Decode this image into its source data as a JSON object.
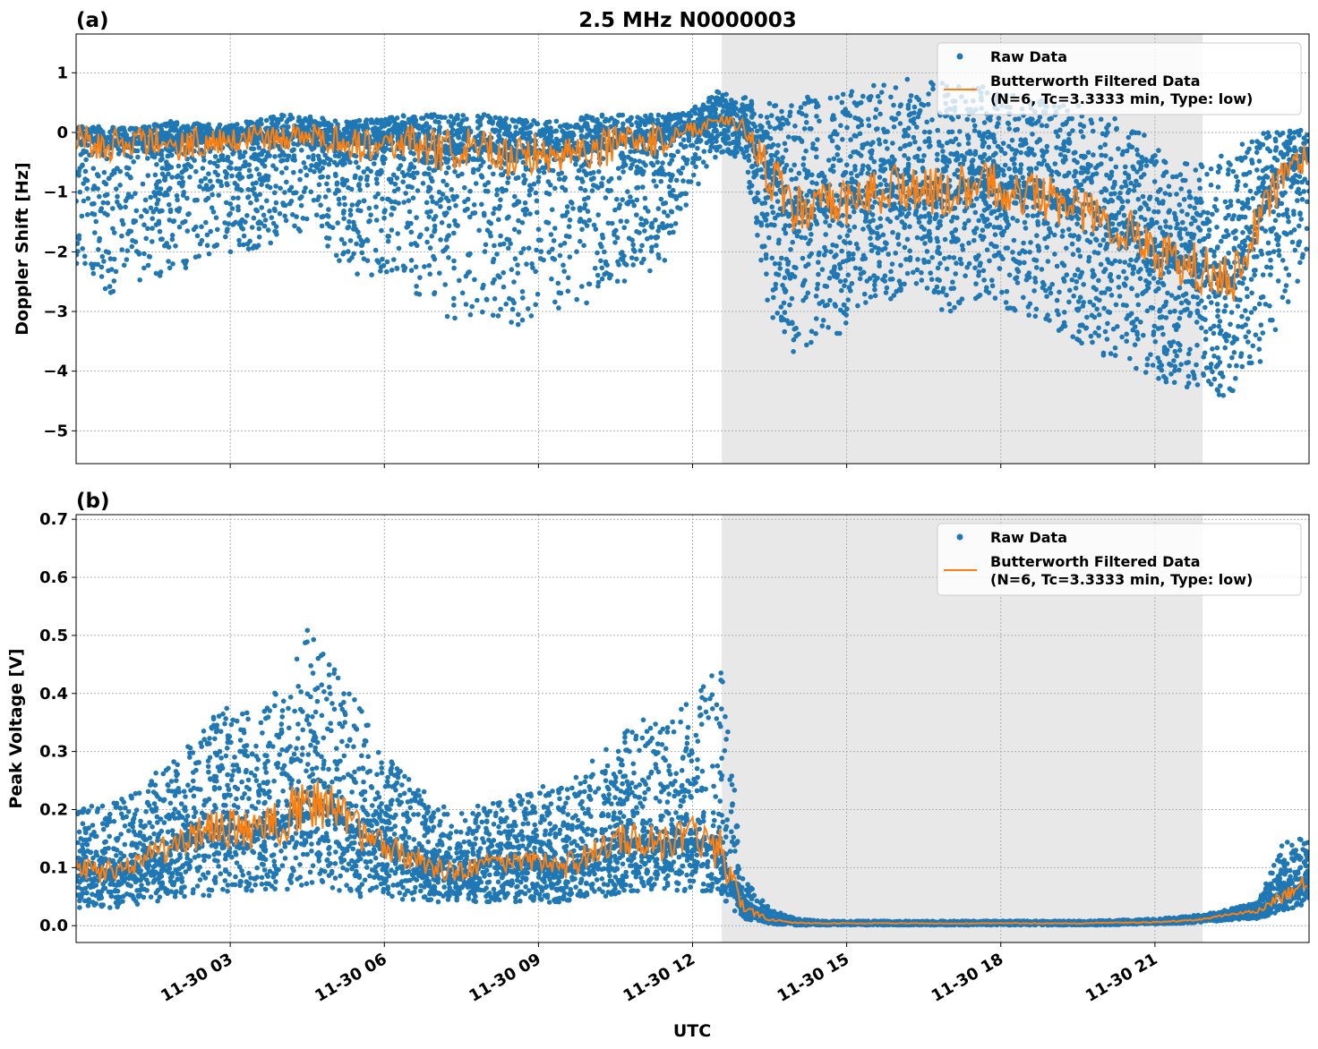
{
  "title": "2.5 MHz N0000003",
  "xlabel": "UTC",
  "colors": {
    "raw": "#1f77b4",
    "filtered": "#ff7f0e",
    "shade": "#e8e8e8"
  },
  "legend": {
    "raw": "Raw Data",
    "filtered_line1": "Butterworth Filtered Data",
    "filtered_line2": "(N=6, Tc=3.3333 min, Type: low)",
    "placement": "top-right"
  },
  "chart_data": [
    {
      "type": "scatter",
      "panel_label": "(a)",
      "ylabel": "Doppler Shift [Hz]",
      "xlim_hours_utc": [
        0,
        24
      ],
      "ylim": [
        -5.55,
        1.65
      ],
      "yticks": [
        1,
        0,
        -1,
        -2,
        -3,
        -4,
        -5
      ],
      "ytick_labels": [
        "1",
        "0",
        "−1",
        "−2",
        "−3",
        "−4",
        "−5"
      ],
      "grid": true,
      "shaded_interval_hours_utc": [
        12.57,
        21.93
      ],
      "x_hours_utc": [
        0,
        0.5,
        1,
        1.5,
        2,
        2.5,
        3,
        3.5,
        4,
        4.5,
        5,
        5.5,
        6,
        6.5,
        7,
        7.5,
        8,
        8.5,
        9,
        9.5,
        10,
        10.5,
        11,
        11.5,
        12,
        12.5,
        13,
        13.5,
        14,
        14.5,
        15,
        15.5,
        16,
        16.5,
        17,
        17.5,
        18,
        18.5,
        19,
        19.5,
        20,
        20.5,
        21,
        21.5,
        22,
        22.5,
        23,
        23.5,
        24
      ],
      "filtered": [
        -0.1,
        -0.2,
        -0.2,
        -0.15,
        -0.2,
        -0.15,
        -0.1,
        -0.1,
        -0.1,
        -0.05,
        -0.1,
        -0.2,
        -0.15,
        -0.2,
        -0.3,
        -0.3,
        -0.3,
        -0.4,
        -0.35,
        -0.3,
        -0.3,
        -0.2,
        -0.15,
        -0.1,
        0.05,
        0.25,
        0.1,
        -0.7,
        -1.3,
        -1.3,
        -1.2,
        -1.0,
        -0.9,
        -1.0,
        -1.0,
        -0.9,
        -0.9,
        -1.0,
        -1.1,
        -1.3,
        -1.5,
        -1.6,
        -2.0,
        -2.2,
        -2.3,
        -2.5,
        -1.5,
        -0.7,
        -0.4
      ],
      "raw_upper": [
        0.1,
        0.1,
        0.1,
        0.15,
        0.2,
        0.15,
        0.15,
        0.2,
        0.3,
        0.3,
        0.2,
        0.2,
        0.25,
        0.3,
        0.3,
        0.3,
        0.3,
        0.25,
        0.2,
        0.2,
        0.3,
        0.3,
        0.3,
        0.3,
        0.4,
        0.7,
        0.6,
        0.5,
        0.6,
        0.6,
        0.7,
        0.8,
        0.9,
        0.9,
        0.8,
        0.8,
        0.7,
        0.6,
        0.5,
        0.5,
        0.3,
        0.2,
        -0.2,
        -0.5,
        -0.5,
        -0.3,
        0.0,
        0.05,
        0.05
      ],
      "raw_lower": [
        -2.2,
        -2.8,
        -2.6,
        -2.5,
        -2.3,
        -2.2,
        -2.0,
        -2.0,
        -1.8,
        -1.6,
        -2.0,
        -2.6,
        -2.4,
        -2.6,
        -3.0,
        -3.2,
        -3.0,
        -3.3,
        -3.0,
        -3.0,
        -3.0,
        -2.6,
        -2.4,
        -2.2,
        -1.0,
        -0.4,
        -0.4,
        -3.2,
        -3.8,
        -3.4,
        -3.4,
        -2.8,
        -2.8,
        -2.9,
        -3.0,
        -2.9,
        -2.9,
        -3.1,
        -3.3,
        -3.5,
        -3.8,
        -3.9,
        -4.1,
        -4.3,
        -4.3,
        -4.5,
        -4.0,
        -3.0,
        -2.2
      ]
    },
    {
      "type": "scatter",
      "panel_label": "(b)",
      "ylabel": "Peak Voltage [V]",
      "xlim_hours_utc": [
        0,
        24
      ],
      "ylim": [
        -0.029,
        0.708
      ],
      "yticks": [
        0.0,
        0.1,
        0.2,
        0.3,
        0.4,
        0.5,
        0.6,
        0.7
      ],
      "ytick_labels": [
        "0.0",
        "0.1",
        "0.2",
        "0.3",
        "0.4",
        "0.5",
        "0.6",
        "0.7"
      ],
      "xtick_hours_utc": [
        3,
        6,
        9,
        12,
        15,
        18,
        21
      ],
      "xtick_labels": [
        "11-30 03",
        "11-30 06",
        "11-30 09",
        "11-30 12",
        "11-30 15",
        "11-30 18",
        "11-30 21"
      ],
      "grid": true,
      "shaded_interval_hours_utc": [
        12.57,
        21.93
      ],
      "x_hours_utc": [
        0,
        0.5,
        1,
        1.5,
        2,
        2.5,
        3,
        3.5,
        4,
        4.5,
        5,
        5.5,
        6,
        6.5,
        7,
        7.5,
        8,
        8.5,
        9,
        9.5,
        10,
        10.5,
        11,
        11.5,
        12,
        12.5,
        13,
        13.5,
        14,
        14.5,
        15,
        15.5,
        16,
        16.5,
        17,
        17.5,
        18,
        18.5,
        19,
        19.5,
        20,
        20.5,
        21,
        21.5,
        22,
        22.5,
        23,
        23.5,
        24
      ],
      "filtered": [
        0.1,
        0.09,
        0.1,
        0.12,
        0.14,
        0.16,
        0.17,
        0.16,
        0.18,
        0.22,
        0.2,
        0.16,
        0.14,
        0.12,
        0.1,
        0.09,
        0.11,
        0.11,
        0.11,
        0.1,
        0.12,
        0.14,
        0.15,
        0.14,
        0.15,
        0.13,
        0.03,
        0.01,
        0.005,
        0.004,
        0.004,
        0.004,
        0.004,
        0.004,
        0.004,
        0.004,
        0.004,
        0.004,
        0.004,
        0.004,
        0.005,
        0.005,
        0.006,
        0.008,
        0.012,
        0.02,
        0.025,
        0.05,
        0.08
      ],
      "raw_upper": [
        0.2,
        0.22,
        0.22,
        0.26,
        0.3,
        0.35,
        0.38,
        0.36,
        0.42,
        0.52,
        0.45,
        0.38,
        0.3,
        0.25,
        0.22,
        0.2,
        0.21,
        0.22,
        0.24,
        0.24,
        0.28,
        0.32,
        0.36,
        0.34,
        0.4,
        0.5,
        0.08,
        0.03,
        0.012,
        0.008,
        0.008,
        0.008,
        0.008,
        0.008,
        0.008,
        0.008,
        0.008,
        0.008,
        0.008,
        0.008,
        0.009,
        0.01,
        0.012,
        0.015,
        0.02,
        0.03,
        0.04,
        0.15,
        0.15
      ],
      "raw_lower": [
        0.03,
        0.03,
        0.03,
        0.04,
        0.05,
        0.05,
        0.06,
        0.06,
        0.06,
        0.07,
        0.06,
        0.05,
        0.05,
        0.04,
        0.04,
        0.04,
        0.04,
        0.04,
        0.04,
        0.04,
        0.05,
        0.05,
        0.06,
        0.06,
        0.06,
        0.05,
        0.01,
        0.003,
        0.001,
        0.001,
        0.001,
        0.001,
        0.001,
        0.001,
        0.001,
        0.001,
        0.001,
        0.001,
        0.001,
        0.001,
        0.001,
        0.002,
        0.003,
        0.004,
        0.006,
        0.01,
        0.012,
        0.025,
        0.04
      ]
    }
  ]
}
